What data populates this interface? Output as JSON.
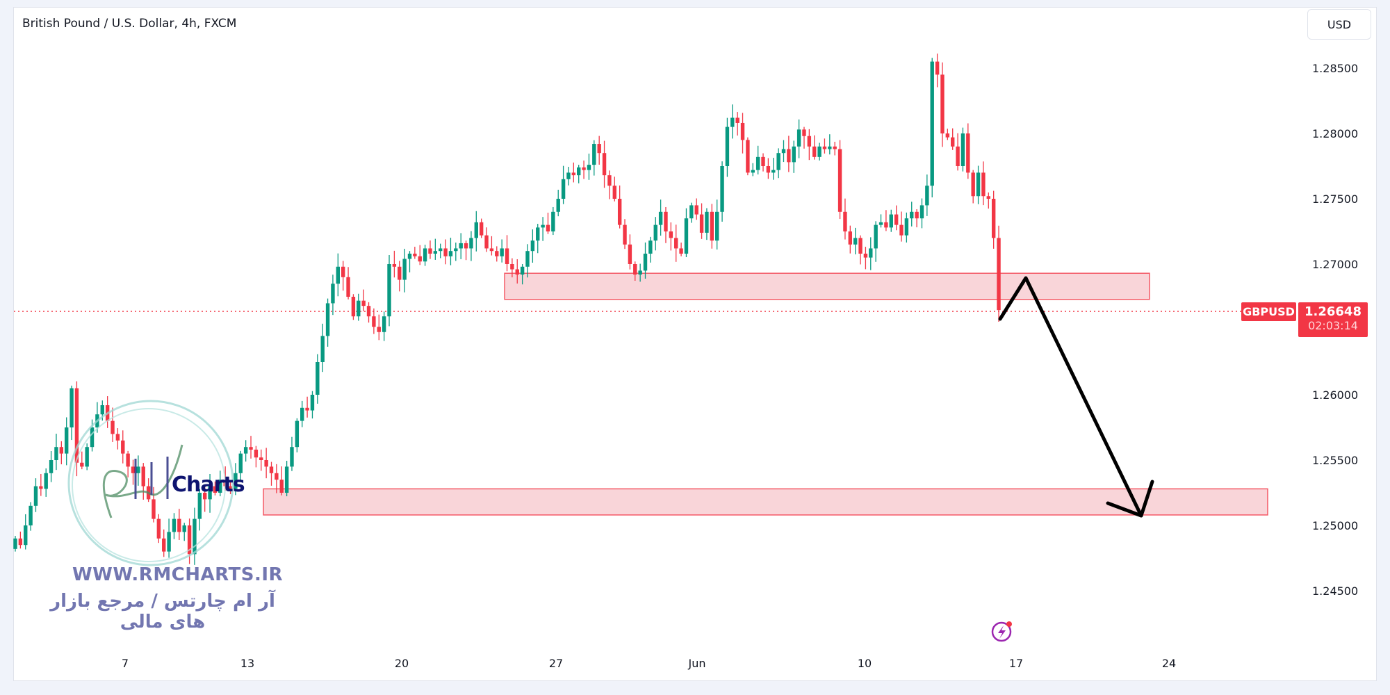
{
  "header": {
    "title": "British Pound / U.S. Dollar, 4h, FXCM",
    "currency_button": "USD"
  },
  "price_label": {
    "symbol": "GBPUSD",
    "price": "1.26648",
    "countdown": "02:03:14"
  },
  "watermark": {
    "brand": "Charts",
    "url": "WWW.RMCHARTS.IR",
    "tagline": "آر ام چارتس / مرجع بازار های مالی"
  },
  "icons": {
    "bolt": "lightning-icon"
  },
  "colors": {
    "up": "#089981",
    "down": "#f23645",
    "zone_fill": "#f9d5d9",
    "zone_border": "#f23645",
    "arrow": "#000000",
    "watermark": "#7276b0"
  },
  "chart_data": {
    "type": "candlestick",
    "title": "British Pound / U.S. Dollar, 4h, FXCM",
    "ylim": [
      1.242,
      1.287
    ],
    "y_ticks": [
      "1.28500",
      "1.28000",
      "1.27500",
      "1.27000",
      "1.26500",
      "1.26000",
      "1.25500",
      "1.25000",
      "1.24500"
    ],
    "x_ticks": [
      "7",
      "13",
      "20",
      "27",
      "Jun",
      "10",
      "17",
      "24"
    ],
    "grid": false,
    "last_price": 1.26648,
    "closes": [
      1.249,
      1.2485,
      1.25,
      1.2515,
      1.253,
      1.2528,
      1.254,
      1.255,
      1.256,
      1.2555,
      1.2575,
      1.2605,
      1.2548,
      1.2545,
      1.256,
      1.2575,
      1.2585,
      1.2592,
      1.258,
      1.257,
      1.2565,
      1.2555,
      1.2545,
      1.254,
      1.2545,
      1.253,
      1.252,
      1.2505,
      1.249,
      1.248,
      1.2495,
      1.2505,
      1.2495,
      1.25,
      1.2478,
      1.2505,
      1.2525,
      1.252,
      1.253,
      1.2525,
      1.2535,
      1.253,
      1.2528,
      1.254,
      1.2555,
      1.256,
      1.2558,
      1.2552,
      1.255,
      1.2545,
      1.254,
      1.2535,
      1.2525,
      1.2545,
      1.256,
      1.258,
      1.259,
      1.2588,
      1.26,
      1.2625,
      1.2645,
      1.267,
      1.2685,
      1.2698,
      1.269,
      1.2675,
      1.266,
      1.2672,
      1.2668,
      1.266,
      1.2652,
      1.2648,
      1.266,
      1.27,
      1.2698,
      1.2688,
      1.2704,
      1.2708,
      1.2706,
      1.2702,
      1.2712,
      1.2708,
      1.271,
      1.2712,
      1.2706,
      1.271,
      1.2712,
      1.2716,
      1.2712,
      1.272,
      1.2732,
      1.2722,
      1.2712,
      1.271,
      1.2706,
      1.2712,
      1.27,
      1.2696,
      1.2692,
      1.2698,
      1.271,
      1.2718,
      1.2728,
      1.273,
      1.2725,
      1.274,
      1.275,
      1.2765,
      1.277,
      1.2768,
      1.2774,
      1.2772,
      1.2776,
      1.2792,
      1.2785,
      1.2768,
      1.276,
      1.275,
      1.273,
      1.2715,
      1.27,
      1.2692,
      1.2695,
      1.2708,
      1.2718,
      1.273,
      1.274,
      1.2725,
      1.272,
      1.2712,
      1.2708,
      1.2735,
      1.2745,
      1.2738,
      1.2724,
      1.274,
      1.2718,
      1.274,
      1.2775,
      1.2805,
      1.2812,
      1.2808,
      1.2795,
      1.277,
      1.2772,
      1.2782,
      1.2775,
      1.277,
      1.2772,
      1.2785,
      1.2788,
      1.2778,
      1.279,
      1.2803,
      1.2798,
      1.279,
      1.2782,
      1.279,
      1.2788,
      1.279,
      1.2788,
      1.274,
      1.2725,
      1.2715,
      1.272,
      1.2708,
      1.2705,
      1.2712,
      1.273,
      1.2732,
      1.2728,
      1.2738,
      1.273,
      1.2722,
      1.2735,
      1.274,
      1.2735,
      1.2745,
      1.276,
      1.2855,
      1.2845,
      1.28,
      1.2797,
      1.279,
      1.2775,
      1.28,
      1.277,
      1.2752,
      1.277,
      1.2752,
      1.275,
      1.272,
      1.26648
    ],
    "zones": [
      {
        "name": "resistance-zone",
        "top": 1.2693,
        "bottom": 1.2673
      },
      {
        "name": "support-zone",
        "top": 1.2528,
        "bottom": 1.2508
      }
    ],
    "projection_arrow": {
      "from": 1.266,
      "via": 1.269,
      "to": 1.2508
    }
  }
}
